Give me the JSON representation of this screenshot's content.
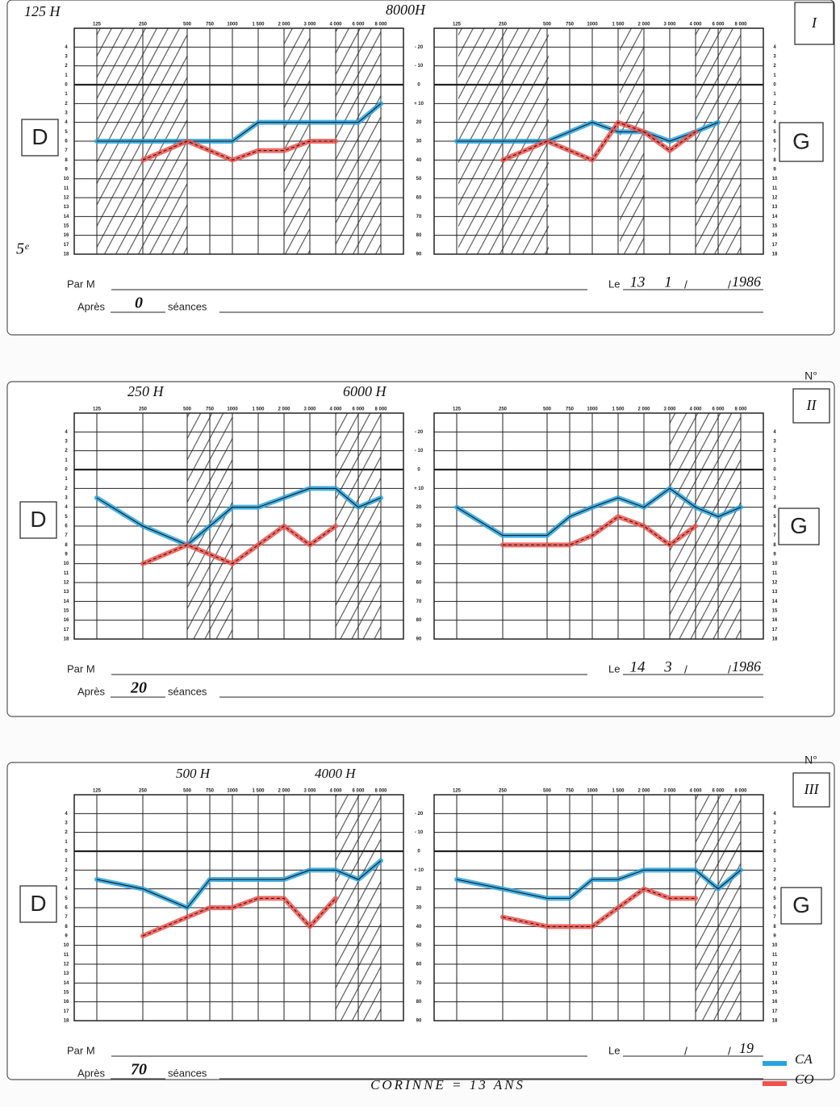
{
  "frequencies": [
    "125",
    "250",
    "500",
    "750",
    "1000",
    "1 500",
    "2 000",
    "3 000",
    "4 000",
    "6 000",
    "8 000"
  ],
  "ylim": [
    -30,
    90
  ],
  "db_ticks": [
    {
      "value": -20,
      "label": "- 20"
    },
    {
      "value": -10,
      "label": "- 10"
    },
    0,
    {
      "value": 10,
      "label": "+ 10"
    },
    20,
    30,
    40,
    50,
    60,
    70,
    80,
    90
  ],
  "hl_ticks": [
    {
      "value": -20,
      "label": "4"
    },
    {
      "value": -15,
      "label": "3"
    },
    {
      "value": -10,
      "label": "2"
    },
    {
      "value": -5,
      "label": "1"
    },
    0,
    {
      "value": 5,
      "label": "1"
    },
    {
      "value": 10,
      "label": "2"
    },
    {
      "value": 15,
      "label": "3"
    },
    {
      "value": 20,
      "label": "4"
    },
    {
      "value": 25,
      "label": "5"
    },
    {
      "value": 30,
      "label": "6"
    },
    {
      "value": 35,
      "label": "7"
    },
    {
      "value": 40,
      "label": "8"
    },
    {
      "value": 45,
      "label": "9"
    },
    {
      "value": 50,
      "label": "10"
    },
    {
      "value": 55,
      "label": "11"
    },
    {
      "value": 60,
      "label": "12"
    },
    {
      "value": 65,
      "label": "13"
    },
    {
      "value": 70,
      "label": "14"
    },
    {
      "value": 75,
      "label": "15"
    },
    {
      "value": 80,
      "label": "16"
    },
    {
      "value": 85,
      "label": "17"
    },
    {
      "value": 90,
      "label": "18"
    }
  ],
  "legend": [
    {
      "name": "CA",
      "color": "#29a3df"
    },
    {
      "name": "CO",
      "color": "#f0524c"
    }
  ],
  "labels": {
    "par": "Par M",
    "le": "Le",
    "apres": "Après",
    "seances": "séances",
    "number": "N°"
  },
  "panels": [
    {
      "number": "I",
      "notes": [
        "125 H",
        "8000H",
        "5ᵉ"
      ],
      "ears": [
        {
          "label": "D",
          "ca": [
            30,
            30,
            30,
            30,
            30,
            20,
            20,
            20,
            20,
            20,
            10
          ],
          "co": [
            null,
            40,
            30,
            35,
            40,
            35,
            35,
            30,
            30,
            null,
            null
          ]
        },
        {
          "label": "G",
          "ca": [
            30,
            30,
            30,
            25,
            20,
            25,
            25,
            30,
            25,
            20,
            null
          ],
          "co": [
            null,
            40,
            30,
            35,
            40,
            20,
            25,
            35,
            25,
            null,
            null
          ]
        }
      ],
      "date": {
        "day": "13",
        "month": "1",
        "year": "1986"
      },
      "sessions": "0"
    },
    {
      "number": "II",
      "notes": [
        "250 H",
        "6000 H"
      ],
      "ears": [
        {
          "label": "D",
          "ca": [
            15,
            30,
            40,
            30,
            20,
            20,
            15,
            10,
            10,
            20,
            15
          ],
          "co": [
            null,
            50,
            40,
            45,
            50,
            40,
            30,
            40,
            30,
            null,
            null
          ]
        },
        {
          "label": "G",
          "ca": [
            20,
            35,
            35,
            25,
            20,
            15,
            20,
            10,
            20,
            25,
            20
          ],
          "co": [
            null,
            40,
            40,
            40,
            35,
            25,
            30,
            40,
            30,
            null,
            null
          ]
        }
      ],
      "date": {
        "day": "14",
        "month": "3",
        "year": "1986"
      },
      "sessions": "20"
    },
    {
      "number": "III",
      "notes": [
        "500 H",
        "4000 H"
      ],
      "ears": [
        {
          "label": "D",
          "ca": [
            15,
            20,
            30,
            15,
            15,
            15,
            15,
            10,
            10,
            15,
            5
          ],
          "co": [
            null,
            45,
            35,
            30,
            30,
            25,
            25,
            40,
            25,
            null,
            null
          ]
        },
        {
          "label": "G",
          "ca": [
            15,
            20,
            25,
            25,
            15,
            15,
            10,
            10,
            10,
            20,
            10
          ],
          "co": [
            null,
            35,
            40,
            40,
            40,
            30,
            20,
            25,
            25,
            null,
            null
          ]
        }
      ],
      "date": {
        "year": "19"
      },
      "sessions": "70"
    }
  ],
  "footer": "CORINNE = 13 ANS"
}
